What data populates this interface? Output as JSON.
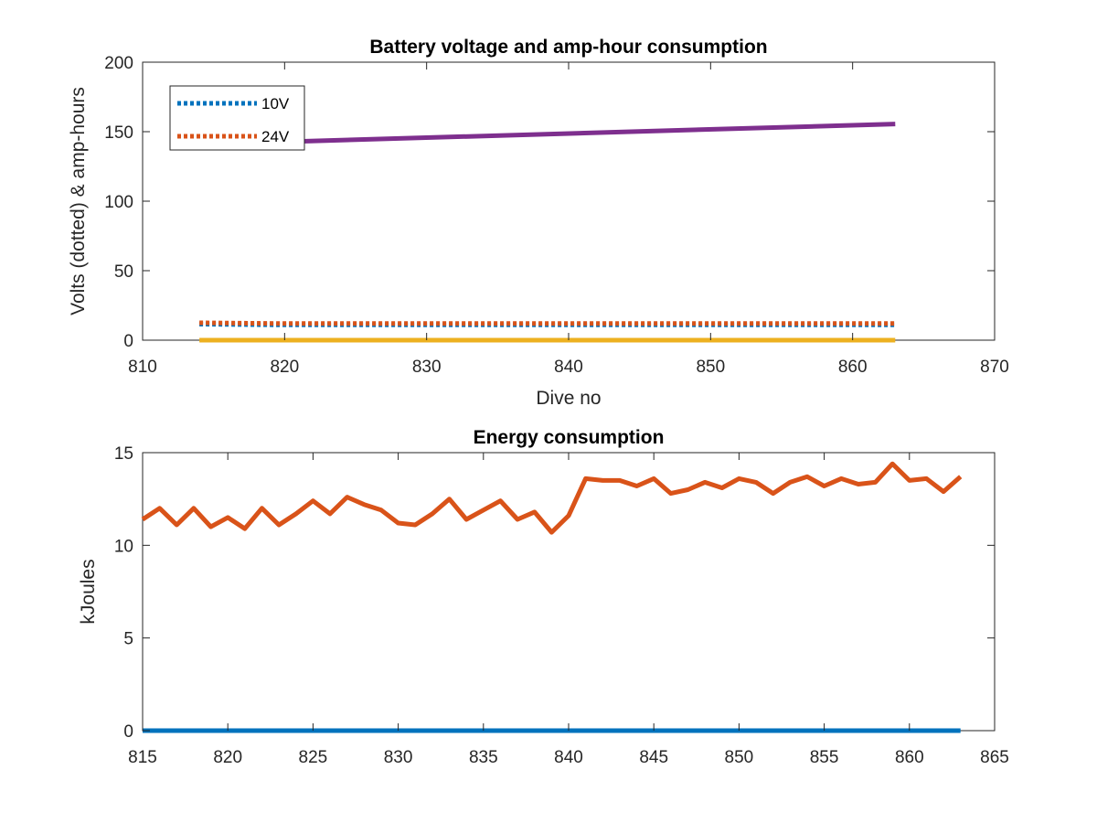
{
  "chart_data": [
    {
      "type": "line",
      "title": "Battery voltage and amp-hour consumption",
      "xlabel": "Dive no",
      "ylabel": "Volts (dotted) & amp-hours",
      "xlim": [
        810,
        870
      ],
      "ylim": [
        0,
        200
      ],
      "xticks": [
        810,
        820,
        830,
        840,
        850,
        860,
        870
      ],
      "yticks": [
        0,
        50,
        100,
        150,
        200
      ],
      "grid": false,
      "legend_position": "top-left",
      "series": [
        {
          "name": "10V",
          "style": "dotted",
          "color": "#0072BD",
          "x": [
            814,
            820,
            830,
            840,
            850,
            863
          ],
          "y": [
            11.5,
            11,
            11,
            11,
            11,
            11
          ]
        },
        {
          "name": "24V",
          "style": "dotted",
          "color": "#D95319",
          "x": [
            814,
            820,
            830,
            840,
            850,
            863
          ],
          "y": [
            12.5,
            12,
            12,
            12,
            12,
            12
          ]
        },
        {
          "style": "solid",
          "color": "#EDB120",
          "x": [
            814,
            863
          ],
          "y": [
            0,
            0
          ]
        },
        {
          "style": "solid",
          "color": "#7E2F8E",
          "x": [
            821,
            863
          ],
          "y": [
            143,
            155.5
          ]
        }
      ]
    },
    {
      "type": "line",
      "title": "Energy consumption",
      "xlabel": "",
      "ylabel": "kJoules",
      "xlim": [
        815,
        865
      ],
      "ylim": [
        0,
        15
      ],
      "xticks": [
        815,
        820,
        825,
        830,
        835,
        840,
        845,
        850,
        855,
        860,
        865
      ],
      "yticks": [
        0,
        5,
        10,
        15
      ],
      "grid": false,
      "series": [
        {
          "style": "solid",
          "color": "#D95319",
          "x": [
            815,
            816,
            817,
            818,
            819,
            820,
            821,
            822,
            823,
            824,
            825,
            826,
            827,
            828,
            829,
            830,
            831,
            832,
            833,
            834,
            835,
            836,
            837,
            838,
            839,
            840,
            841,
            842,
            843,
            844,
            845,
            846,
            847,
            848,
            849,
            850,
            851,
            852,
            853,
            854,
            855,
            856,
            857,
            858,
            859,
            860,
            861,
            862,
            863
          ],
          "y": [
            11.4,
            12.0,
            11.1,
            12.0,
            11.0,
            11.5,
            10.9,
            12.0,
            11.1,
            11.7,
            12.4,
            11.7,
            12.6,
            12.2,
            11.9,
            11.2,
            11.1,
            11.7,
            12.5,
            11.4,
            11.9,
            12.4,
            11.4,
            11.8,
            10.7,
            11.6,
            13.6,
            13.5,
            13.5,
            13.2,
            13.6,
            12.8,
            13.0,
            13.4,
            13.1,
            13.6,
            13.4,
            12.8,
            13.4,
            13.7,
            13.2,
            13.6,
            13.3,
            13.4,
            14.4,
            13.5,
            13.6,
            12.9,
            13.7
          ]
        },
        {
          "style": "solid",
          "color": "#0072BD",
          "x": [
            815,
            863
          ],
          "y": [
            0,
            0
          ]
        }
      ]
    }
  ]
}
